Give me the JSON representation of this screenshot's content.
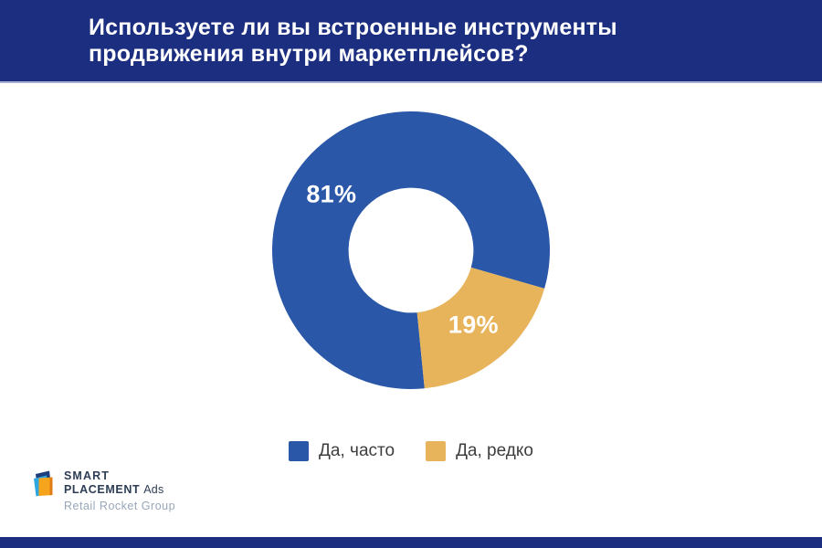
{
  "title": {
    "lines": [
      "Используете ли вы встроенные инструменты",
      "продвижения внутри маркетплейсов?"
    ]
  },
  "chart_data": {
    "type": "pie",
    "subtype": "donut",
    "title": "Используете ли вы встроенные инструменты продвижения внутри маркетплейсов?",
    "categories": [
      "Да, часто",
      "Да, редко"
    ],
    "values": [
      81,
      19
    ],
    "unit": "%",
    "slices": [
      {
        "label": "Да, часто",
        "value": 81,
        "display": "81%",
        "color": "#2a57a8"
      },
      {
        "label": "Да, редко",
        "value": 19,
        "display": "19%",
        "color": "#e7b45c"
      }
    ],
    "legend_position": "bottom-center",
    "layout": {
      "start_angle_deg": 174.4,
      "inner_radius_ratio": 0.45,
      "label_angles_deg": [
        305,
        140
      ],
      "label_radius_ratio": 0.7
    }
  },
  "branding": {
    "logo_line1": "SMART",
    "logo_line2_strong": "PLACEMENT",
    "logo_line2_suffix": "Ads",
    "logo_subtitle": "Retail Rocket Group"
  },
  "colors": {
    "banner": "#1c2e7f",
    "banner_separator": "#a8b1d0",
    "footer": "#1c2e7f",
    "slice_blue": "#2a57a8",
    "slice_gold": "#e7b45c",
    "percent_text": "#ffffff",
    "legend_text": "#3e3e3e",
    "logo_text": "#2e3d55",
    "logo_subtext": "#97a6b9"
  }
}
